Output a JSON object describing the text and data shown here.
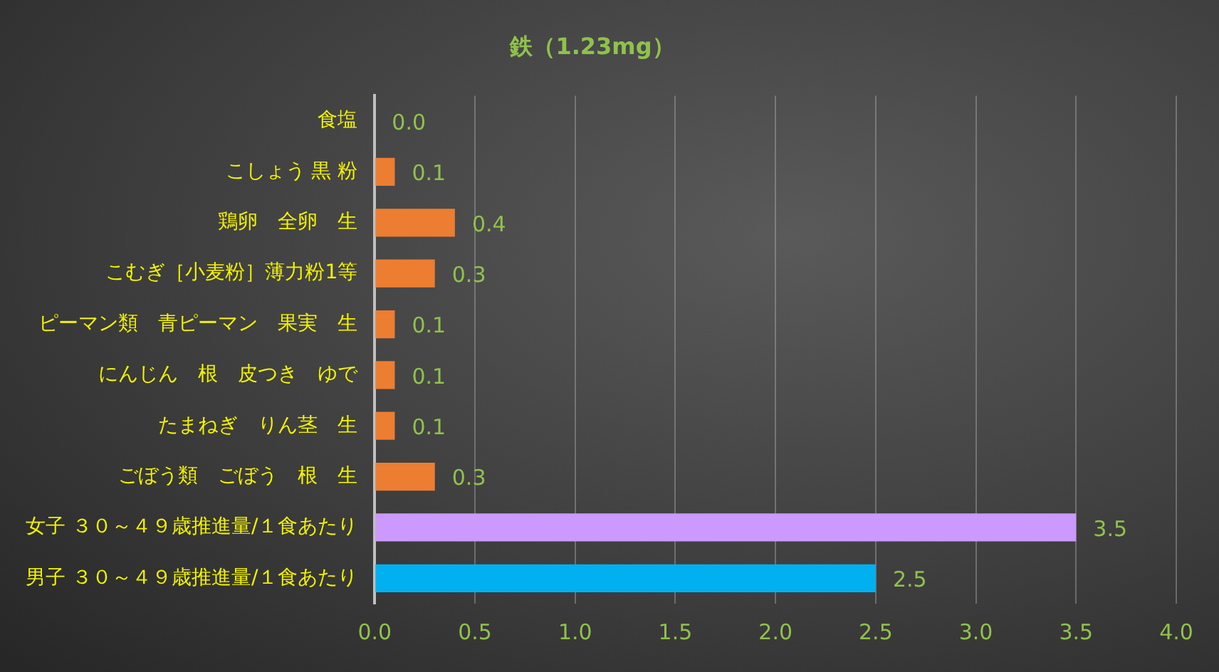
{
  "chart_data": {
    "type": "bar",
    "orientation": "horizontal",
    "title": "鉄（1.23mg）",
    "categories": [
      "食塩",
      "こしょう 黒 粉",
      "鶏卵　全卵　生",
      "こむぎ［小麦粉］薄力粉1等",
      "ピーマン類　青ピーマン　果実　生",
      "にんじん　根　皮つき　ゆで",
      "たまねぎ　りん茎　生",
      "ごぼう類　ごぼう　根　生",
      "女子 ３０～４９歳推進量/１食あたり",
      "男子 ３０～４９歳推進量/１食あたり"
    ],
    "values": [
      0,
      0.1,
      0.4,
      0.3,
      0.1,
      0.1,
      0.1,
      0.3,
      3.5,
      2.5
    ],
    "value_labels": [
      "0.0",
      "0.1",
      "0.4",
      "0.3",
      "0.1",
      "0.1",
      "0.1",
      "0.3",
      "3.5",
      "2.5"
    ],
    "colors": [
      "#ed7d31",
      "#ed7d31",
      "#ed7d31",
      "#ed7d31",
      "#ed7d31",
      "#ed7d31",
      "#ed7d31",
      "#ed7d31",
      "#cc99ff",
      "#00b0f0"
    ],
    "xlim": [
      0,
      4
    ],
    "xticks": [
      {
        "value": 0,
        "label": "0.0"
      },
      {
        "value": 0.5,
        "label": "0.5"
      },
      {
        "value": 1,
        "label": "1.0"
      },
      {
        "value": 1.5,
        "label": "1.5"
      },
      {
        "value": 2,
        "label": "2.0"
      },
      {
        "value": 2.5,
        "label": "2.5"
      },
      {
        "value": 3,
        "label": "3.0"
      },
      {
        "value": 3.5,
        "label": "3.5"
      },
      {
        "value": 4,
        "label": "4.0"
      }
    ],
    "grid": "x",
    "legend": false
  }
}
